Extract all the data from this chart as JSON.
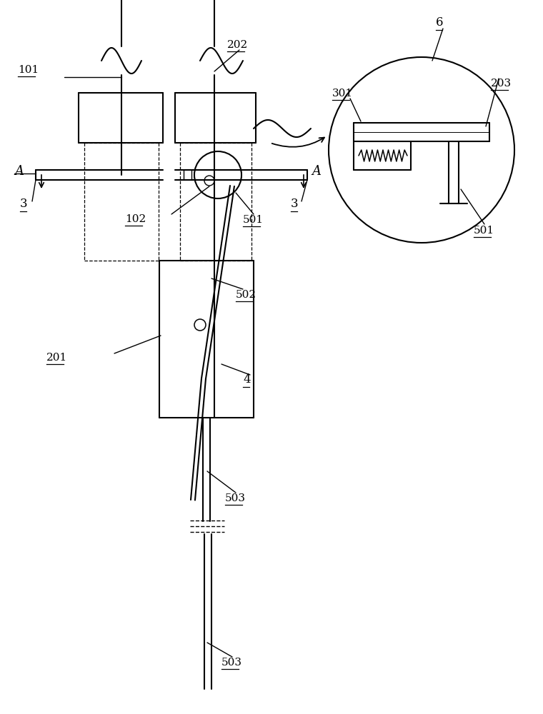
{
  "fig_width": 7.6,
  "fig_height": 10.0,
  "dpi": 100,
  "line_color": "#000000",
  "bg_color": "#ffffff"
}
